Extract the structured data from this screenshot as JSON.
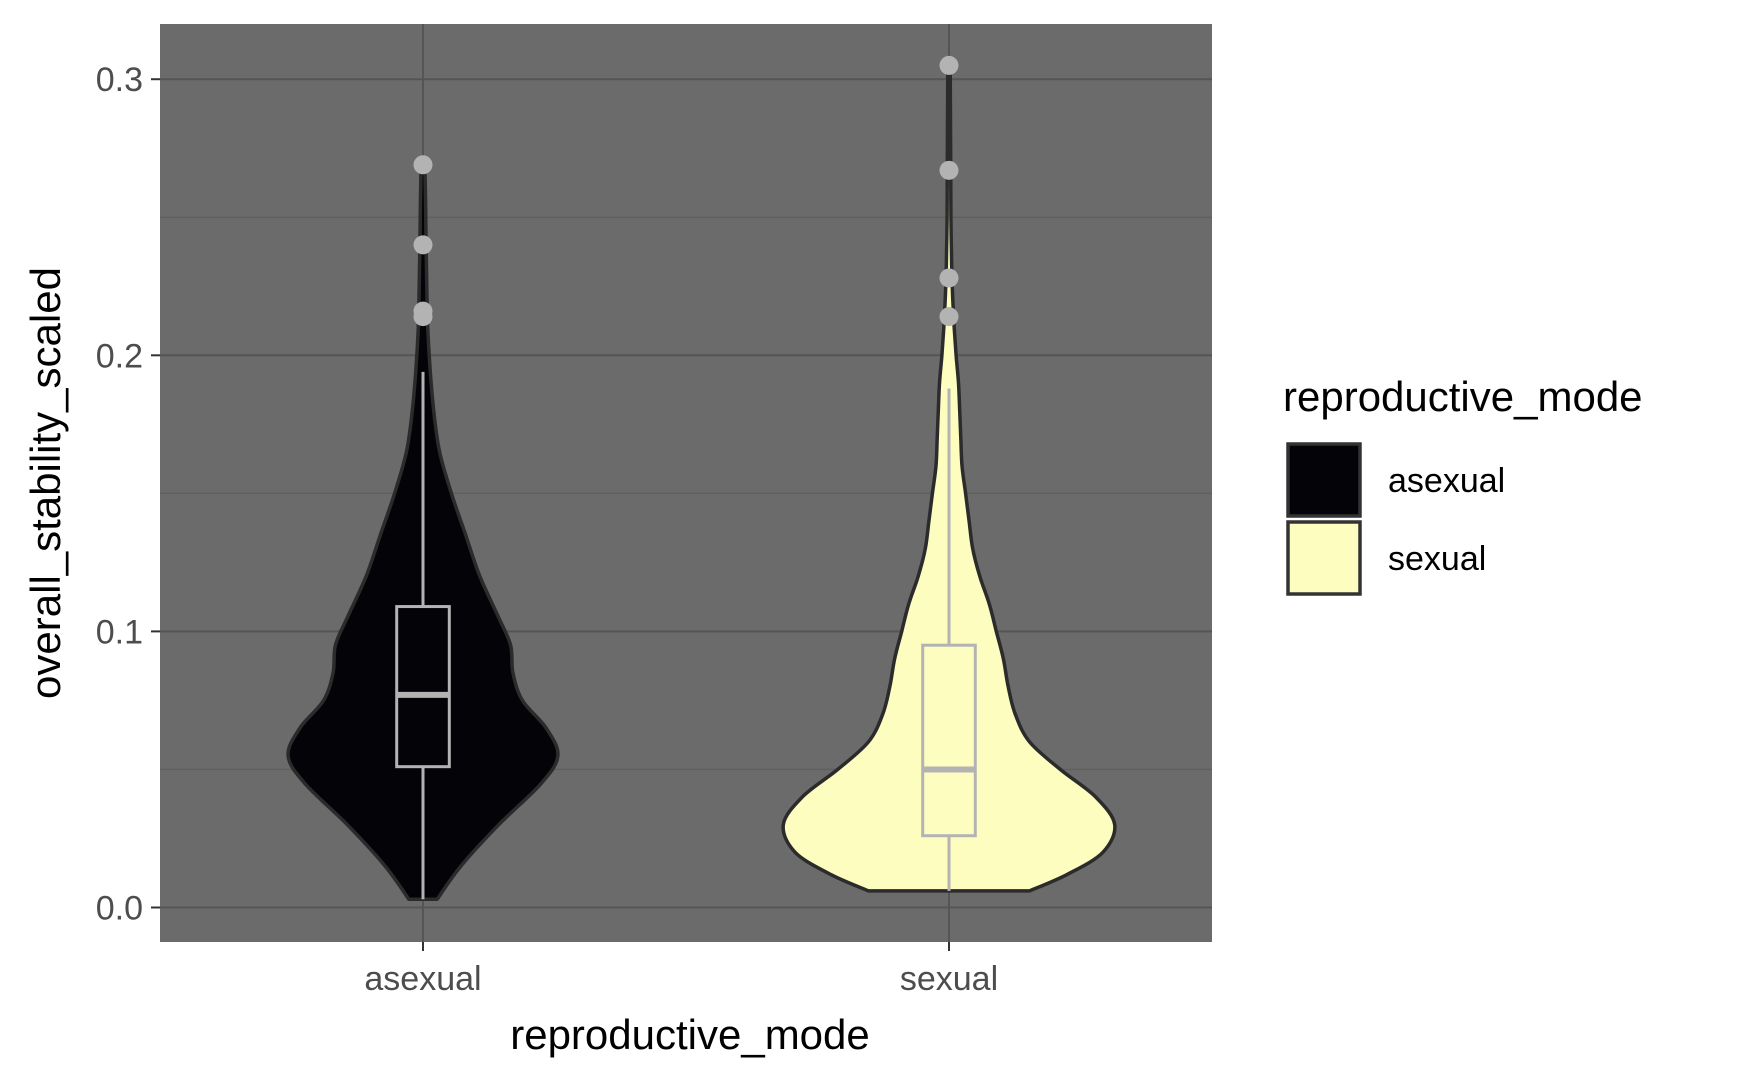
{
  "chart_data": {
    "type": "violin",
    "xlabel": "reproductive_mode",
    "ylabel": "overall_stability_scaled",
    "categories": [
      "asexual",
      "sexual"
    ],
    "ylim": [
      -0.0125,
      0.32
    ],
    "y_ticks": [
      0.0,
      0.1,
      0.2,
      0.3
    ],
    "y_tick_labels": [
      "0.0",
      "0.1",
      "0.2",
      "0.3"
    ],
    "y_minor_ticks": [
      0.05,
      0.15,
      0.25
    ],
    "grid": true,
    "legend": {
      "title": "reproductive_mode",
      "position": "right",
      "entries": [
        {
          "label": "asexual",
          "color": "#030308"
        },
        {
          "label": "sexual",
          "color": "#FCFDBF"
        }
      ]
    },
    "colors": {
      "panel_background": "#6b6b6b",
      "grid_major": "#555555",
      "grid_minor": "#5f5f5f",
      "violin_outline": "#2b2b2b",
      "boxplot": "#b3b3b3",
      "outlier": "#b3b3b3"
    },
    "series": [
      {
        "name": "asexual",
        "fill": "#030308",
        "violin": [
          [
            0.003,
            0.06
          ],
          [
            0.015,
            0.16
          ],
          [
            0.03,
            0.32
          ],
          [
            0.045,
            0.5
          ],
          [
            0.055,
            0.57
          ],
          [
            0.065,
            0.52
          ],
          [
            0.075,
            0.42
          ],
          [
            0.085,
            0.38
          ],
          [
            0.095,
            0.37
          ],
          [
            0.105,
            0.32
          ],
          [
            0.12,
            0.24
          ],
          [
            0.135,
            0.18
          ],
          [
            0.15,
            0.12
          ],
          [
            0.165,
            0.07
          ],
          [
            0.18,
            0.045
          ],
          [
            0.195,
            0.03
          ],
          [
            0.21,
            0.02
          ],
          [
            0.225,
            0.016
          ],
          [
            0.24,
            0.013
          ],
          [
            0.255,
            0.011
          ],
          [
            0.269,
            0.008
          ]
        ],
        "box": {
          "q1": 0.051,
          "median": 0.077,
          "q3": 0.109,
          "whisker_low": 0.003,
          "whisker_high": 0.194
        },
        "outliers": [
          0.214,
          0.216,
          0.24,
          0.269
        ]
      },
      {
        "name": "sexual",
        "fill": "#FCFDBF",
        "violin": [
          [
            0.006,
            0.34
          ],
          [
            0.012,
            0.5
          ],
          [
            0.02,
            0.65
          ],
          [
            0.03,
            0.7
          ],
          [
            0.04,
            0.62
          ],
          [
            0.05,
            0.47
          ],
          [
            0.06,
            0.34
          ],
          [
            0.07,
            0.28
          ],
          [
            0.08,
            0.25
          ],
          [
            0.09,
            0.23
          ],
          [
            0.1,
            0.2
          ],
          [
            0.11,
            0.17
          ],
          [
            0.12,
            0.13
          ],
          [
            0.13,
            0.1
          ],
          [
            0.14,
            0.085
          ],
          [
            0.15,
            0.07
          ],
          [
            0.16,
            0.055
          ],
          [
            0.17,
            0.05
          ],
          [
            0.18,
            0.045
          ],
          [
            0.19,
            0.04
          ],
          [
            0.2,
            0.03
          ],
          [
            0.21,
            0.022
          ],
          [
            0.22,
            0.016
          ],
          [
            0.23,
            0.012
          ],
          [
            0.25,
            0.008
          ],
          [
            0.27,
            0.007
          ],
          [
            0.29,
            0.006
          ],
          [
            0.305,
            0.005
          ]
        ],
        "box": {
          "q1": 0.026,
          "median": 0.05,
          "q3": 0.095,
          "whisker_low": 0.006,
          "whisker_high": 0.188
        },
        "outliers": [
          0.214,
          0.228,
          0.267,
          0.305
        ]
      }
    ]
  }
}
